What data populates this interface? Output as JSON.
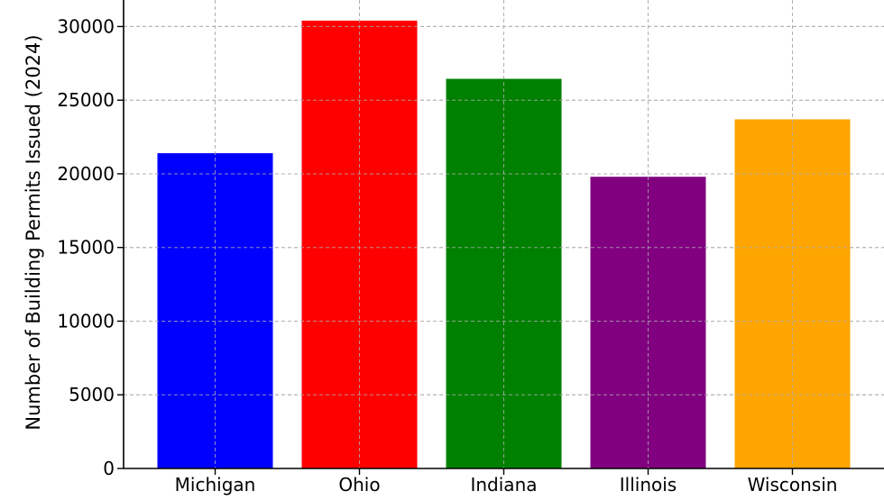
{
  "chart_data": {
    "type": "bar",
    "categories": [
      "Michigan",
      "Ohio",
      "Indiana",
      "Illinois",
      "Wisconsin"
    ],
    "values": [
      21400,
      30400,
      26450,
      19800,
      23700
    ],
    "colors": [
      "#0000ff",
      "#ff0000",
      "#008000",
      "#800080",
      "#ffa500"
    ],
    "title": "",
    "xlabel": "",
    "ylabel": "Number of Building Permits Issued (2024)",
    "ylim": [
      0,
      31800
    ],
    "yticks": [
      0,
      5000,
      10000,
      15000,
      20000,
      25000,
      30000
    ],
    "ytick_labels": [
      "0",
      "5000",
      "10000",
      "15000",
      "20000",
      "25000",
      "30000"
    ],
    "grid": true,
    "legend": false
  }
}
